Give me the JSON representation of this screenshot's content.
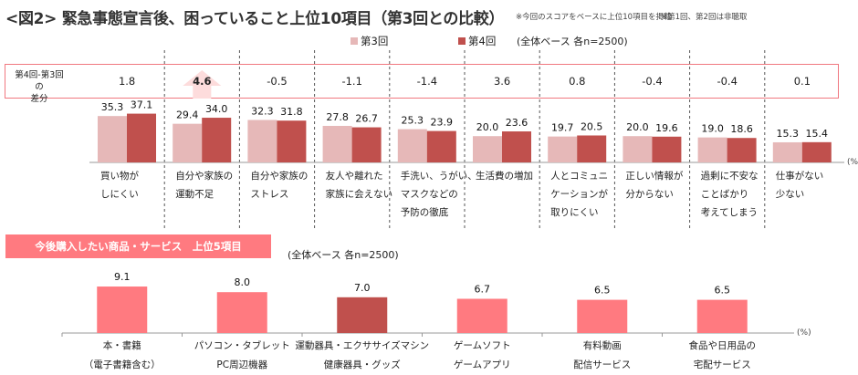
{
  "title": "<図2> 緊急事態宣言後、困っていること上位10項目（第3回との比較）",
  "notes": [
    "※今回のスコアをベースに上位10項目を掲載",
    "※第1回、第2回は非聴取"
  ],
  "colors": {
    "round3": "#e6b8b8",
    "round4": "#c0504d",
    "diff_border": "#f07880",
    "arrow": "#fddcdc",
    "sec2_bar": "#ff7a80",
    "sec2_bar_highlight": "#c0504d",
    "banner": "#ff7a80"
  },
  "diff_label_line1": "第4回-第3回の",
  "diff_label_line2": "差分",
  "chart_data": [
    {
      "type": "bar",
      "title": "緊急事態宣言後、困っていること上位10項目（第3回との比較）",
      "base_note": "(全体ベース 各n=2500)",
      "unit_label": "(%)",
      "xlabel": "",
      "ylabel": "",
      "ylim": [
        0,
        40
      ],
      "legend": [
        "第3回",
        "第4回"
      ],
      "legend_position": "top-right",
      "categories": [
        [
          "買い物が",
          "しにくい"
        ],
        [
          "自分や家族の",
          "運動不足"
        ],
        [
          "自分や家族の",
          "ストレス"
        ],
        [
          "友人や離れた",
          "家族に会えない"
        ],
        [
          "手洗い、うがい、",
          "マスクなどの",
          "予防の徹底"
        ],
        [
          "生活費の増加"
        ],
        [
          "人とコミュニ",
          "ケーションが",
          "取りにくい"
        ],
        [
          "正しい情報が",
          "分からない"
        ],
        [
          "過剰に不安な",
          "ことばかり",
          "考えてしまう"
        ],
        [
          "仕事がない",
          "少ない"
        ]
      ],
      "series": [
        {
          "name": "第3回",
          "values": [
            35.3,
            29.4,
            32.3,
            27.8,
            25.3,
            20.0,
            19.7,
            20.0,
            19.0,
            15.3
          ]
        },
        {
          "name": "第4回",
          "values": [
            37.1,
            34.0,
            31.8,
            26.7,
            23.9,
            23.6,
            20.5,
            19.6,
            18.6,
            15.4
          ]
        }
      ],
      "diff": [
        "1.8",
        "4.6",
        "-0.5",
        "-1.1",
        "-1.4",
        "3.6",
        "0.8",
        "-0.4",
        "-0.4",
        "0.1"
      ],
      "diff_highlight_index": 1
    },
    {
      "type": "bar",
      "title": "今後購入したい商品・サービス　上位5項目",
      "base_note": "(全体ベース 各n=2500)",
      "unit_label": "(%)",
      "xlabel": "",
      "ylabel": "",
      "ylim": [
        0,
        10
      ],
      "categories": [
        [
          "本・書籍",
          "（電子書籍含む）"
        ],
        [
          "パソコン・タブレット",
          "PC周辺機器"
        ],
        [
          "運動器具・エクササイズマシン",
          "健康器具・グッズ"
        ],
        [
          "ゲームソフト",
          "ゲームアプリ"
        ],
        [
          "有料動画",
          "配信サービス"
        ],
        [
          "食品や日用品の",
          "宅配サービス"
        ]
      ],
      "values": [
        9.1,
        8.0,
        7.0,
        6.7,
        6.5,
        6.5
      ],
      "value_labels": [
        "9.1",
        "8.0",
        "7.0",
        "6.7",
        "6.5",
        "6.5"
      ],
      "highlight_index": 2
    }
  ]
}
